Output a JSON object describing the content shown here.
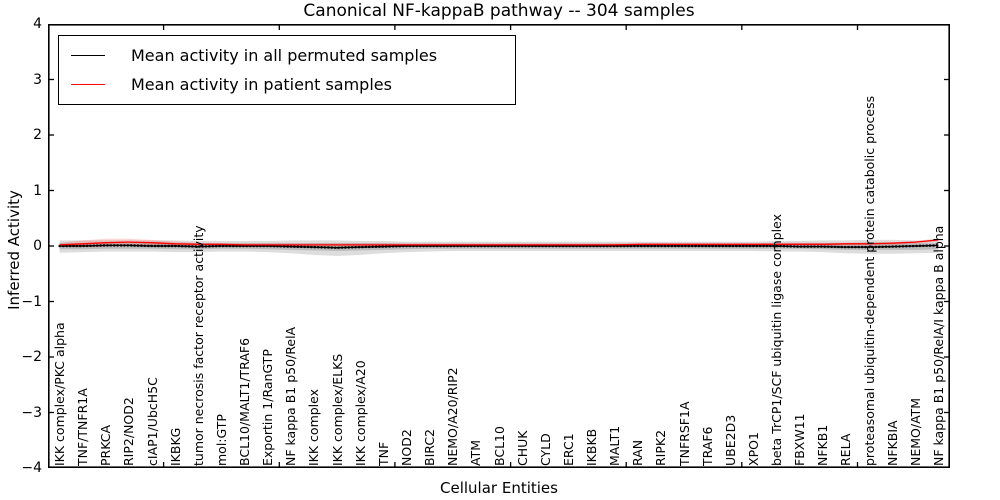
{
  "title": "Canonical NF-kappaB pathway -- 304 samples",
  "xlabel": "Cellular Entities",
  "ylabel": "Inferred Activity",
  "legend": {
    "items": [
      {
        "label": "Mean activity in all permuted samples",
        "color": "#000000"
      },
      {
        "label": "Mean activity in patient samples",
        "color": "#ff0000"
      }
    ]
  },
  "axes": {
    "y_tick_values": [
      4,
      3,
      2,
      1,
      0,
      -1,
      -2,
      -3,
      -4
    ],
    "y_tick_labels": [
      "4",
      "3",
      "2",
      "1",
      "0",
      "−1",
      "−2",
      "−3",
      "−4"
    ],
    "x_numeric_tick_values": [
      5,
      10,
      15,
      20,
      25,
      30,
      35
    ],
    "tick_direction": "in"
  },
  "chart_data": {
    "type": "line",
    "title": "Canonical NF-kappaB pathway -- 304 samples",
    "xlabel": "Cellular Entities",
    "ylabel": "Inferred Activity",
    "ylim": [
      -4,
      4
    ],
    "xlim": [
      0,
      39
    ],
    "grid": false,
    "legend_position": "upper left",
    "categories": [
      "IKK complex/PKC alpha",
      "TNF/TNFR1A",
      "PRKCA",
      "RIP2/NOD2",
      "cIAP1/UbcH5C",
      "IKBKG",
      "tumor necrosis factor receptor activity",
      "mol:GTP",
      "BCL10/MALT1/TRAF6",
      "Exportin 1/RanGTP",
      "NF kappa B1 p50/RelA",
      "IKK complex",
      "IKK complex/ELKS",
      "IKK complex/A20",
      "TNF",
      "NOD2",
      "BIRC2",
      "NEMO/A20/RIP2",
      "ATM",
      "BCL10",
      "CHUK",
      "CYLD",
      "ERC1",
      "IKBKB",
      "MALT1",
      "RAN",
      "RIPK2",
      "TNFRSF1A",
      "TRAF6",
      "UBE2D3",
      "XPO1",
      "beta TrCP1/SCF ubiquitin ligase complex",
      "FBXW11",
      "NFKB1",
      "RELA",
      "proteasomal ubiquitin-dependent protein catabolic process",
      "NFKBIA",
      "NEMO/ATM",
      "NF kappa B1 p50/RelA/I kappa B alpha"
    ],
    "series": [
      {
        "name": "Mean activity in all permuted samples",
        "color": "#000000",
        "marker": "dot",
        "values": [
          0.0,
          0.0,
          0.01,
          0.01,
          0.0,
          0.0,
          -0.01,
          0.0,
          0.0,
          0.0,
          -0.01,
          -0.02,
          -0.03,
          -0.02,
          -0.01,
          0.0,
          0.0,
          0.0,
          0.0,
          0.0,
          0.0,
          0.0,
          0.0,
          0.0,
          0.0,
          0.0,
          0.0,
          0.0,
          0.0,
          0.0,
          0.0,
          0.0,
          -0.01,
          -0.01,
          -0.02,
          -0.02,
          -0.01,
          0.0,
          0.01
        ]
      },
      {
        "name": "Mean activity in patient samples",
        "color": "#ff0000",
        "marker": "none",
        "values": [
          0.02,
          0.04,
          0.06,
          0.07,
          0.06,
          0.04,
          0.03,
          0.03,
          0.02,
          0.02,
          0.02,
          0.02,
          0.02,
          0.02,
          0.02,
          0.02,
          0.02,
          0.02,
          0.02,
          0.02,
          0.02,
          0.02,
          0.02,
          0.02,
          0.02,
          0.03,
          0.03,
          0.03,
          0.03,
          0.03,
          0.03,
          0.03,
          0.03,
          0.03,
          0.04,
          0.04,
          0.05,
          0.07,
          0.11
        ]
      }
    ],
    "bands": [
      {
        "name": "permuted-spread-outer",
        "color": "#aaaaaa",
        "opacity": 0.4,
        "upper": [
          0.1,
          0.1,
          0.1,
          0.1,
          0.1,
          0.1,
          0.09,
          0.09,
          0.09,
          0.09,
          0.1,
          0.1,
          0.1,
          0.09,
          0.09,
          0.08,
          0.08,
          0.08,
          0.08,
          0.08,
          0.08,
          0.08,
          0.08,
          0.08,
          0.08,
          0.08,
          0.08,
          0.08,
          0.08,
          0.08,
          0.08,
          0.09,
          0.09,
          0.1,
          0.1,
          0.11,
          0.11,
          0.1,
          0.09
        ],
        "lower": [
          -0.12,
          -0.11,
          -0.1,
          -0.1,
          -0.1,
          -0.11,
          -0.11,
          -0.1,
          -0.1,
          -0.11,
          -0.13,
          -0.16,
          -0.18,
          -0.16,
          -0.13,
          -0.11,
          -0.1,
          -0.09,
          -0.09,
          -0.09,
          -0.09,
          -0.09,
          -0.09,
          -0.09,
          -0.09,
          -0.09,
          -0.09,
          -0.09,
          -0.09,
          -0.09,
          -0.09,
          -0.1,
          -0.1,
          -0.11,
          -0.13,
          -0.14,
          -0.14,
          -0.13,
          -0.12
        ]
      },
      {
        "name": "permuted-spread-inner",
        "color": "#8a8a8a",
        "opacity": 0.4,
        "upper": [
          0.05,
          0.05,
          0.05,
          0.05,
          0.05,
          0.05,
          0.05,
          0.05,
          0.05,
          0.05,
          0.05,
          0.05,
          0.05,
          0.05,
          0.05,
          0.04,
          0.04,
          0.04,
          0.04,
          0.04,
          0.04,
          0.04,
          0.04,
          0.04,
          0.04,
          0.04,
          0.04,
          0.04,
          0.04,
          0.04,
          0.04,
          0.05,
          0.05,
          0.05,
          0.05,
          0.06,
          0.06,
          0.05,
          0.05
        ],
        "lower": [
          -0.06,
          -0.06,
          -0.05,
          -0.05,
          -0.05,
          -0.06,
          -0.06,
          -0.05,
          -0.05,
          -0.06,
          -0.07,
          -0.08,
          -0.09,
          -0.08,
          -0.07,
          -0.06,
          -0.05,
          -0.05,
          -0.05,
          -0.05,
          -0.05,
          -0.05,
          -0.05,
          -0.05,
          -0.05,
          -0.05,
          -0.05,
          -0.05,
          -0.05,
          -0.05,
          -0.05,
          -0.05,
          -0.05,
          -0.06,
          -0.07,
          -0.07,
          -0.07,
          -0.07,
          -0.06
        ],
        "note": ""
      },
      {
        "name": "patient-spread",
        "color": "#ff0000",
        "opacity": 0.16,
        "upper": [
          0.06,
          0.1,
          0.13,
          0.13,
          0.11,
          0.08,
          0.06,
          0.05,
          0.05,
          0.05,
          0.05,
          0.05,
          0.05,
          0.05,
          0.05,
          0.05,
          0.05,
          0.05,
          0.05,
          0.05,
          0.05,
          0.05,
          0.05,
          0.05,
          0.05,
          0.05,
          0.05,
          0.05,
          0.05,
          0.05,
          0.05,
          0.06,
          0.06,
          0.06,
          0.06,
          0.07,
          0.07,
          0.09,
          0.14
        ],
        "lower": [
          -0.02,
          -0.02,
          -0.01,
          0.0,
          0.0,
          0.0,
          0.0,
          0.0,
          0.0,
          0.0,
          0.0,
          0.0,
          0.0,
          0.0,
          0.0,
          0.0,
          0.0,
          0.0,
          0.0,
          0.0,
          0.0,
          0.0,
          0.0,
          0.0,
          0.0,
          0.0,
          0.0,
          0.0,
          0.0,
          0.0,
          0.0,
          0.0,
          0.0,
          0.0,
          0.01,
          0.01,
          0.02,
          0.04,
          0.08
        ]
      }
    ]
  }
}
